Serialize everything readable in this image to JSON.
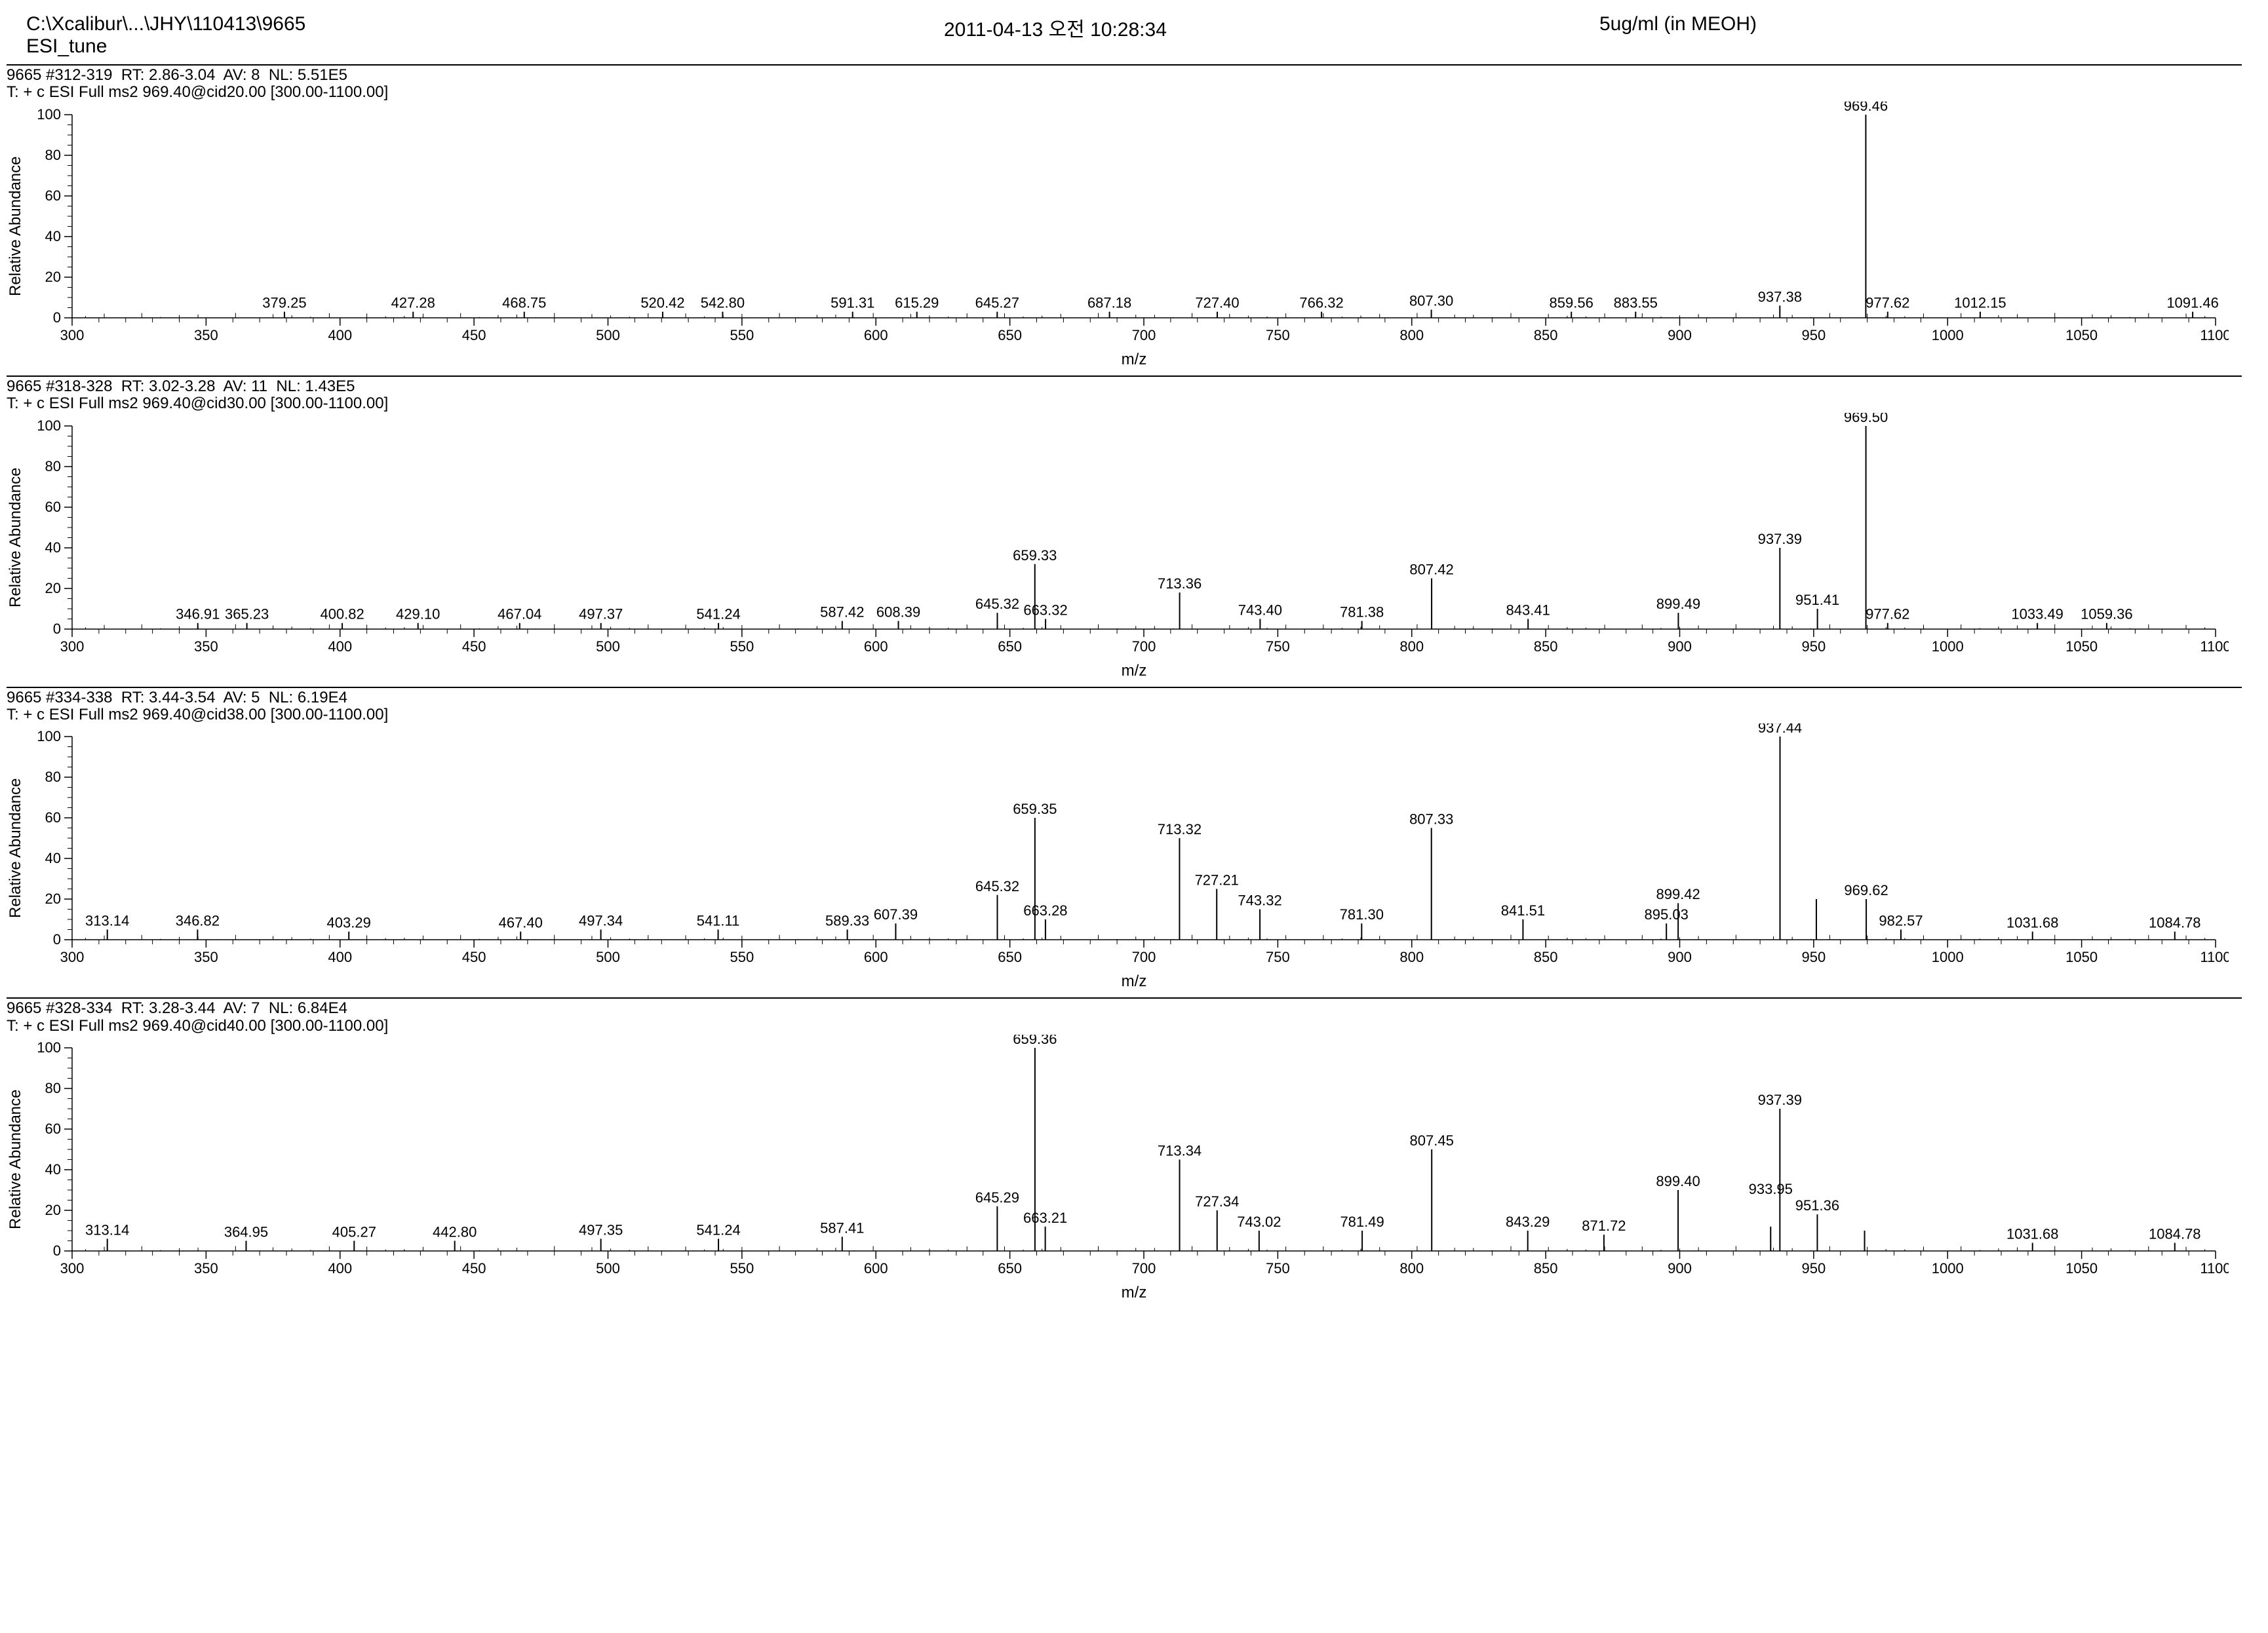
{
  "header": {
    "path": "C:\\Xcalibur\\...\\JHY\\110413\\9665",
    "tune": "ESI_tune",
    "timestamp": "2011-04-13 오전 10:28:34",
    "sample": "5ug/ml (in MEOH)"
  },
  "chart_style": {
    "xlim": [
      300,
      1100
    ],
    "ylim": [
      0,
      100
    ],
    "xtick_step": 50,
    "ytick_step": 20,
    "axis_color": "#000000",
    "tick_len_major": 12,
    "tick_len_minor": 7,
    "font_size_axis": 22,
    "font_size_peak": 22,
    "font_size_ylabel": 24,
    "ylabel": "Relative Abundance",
    "xlabel": "m/z",
    "background": "#ffffff",
    "peak_color": "#000000",
    "line_width": 1.5
  },
  "charts": [
    {
      "meta1": "9665 #312-319  RT: 2.86-3.04  AV: 8  NL: 5.51E5",
      "meta2": "T: + c ESI Full ms2 969.40@cid20.00 [300.00-1100.00]",
      "peaks": [
        {
          "mz": 379.25,
          "h": 3,
          "label": "379.25"
        },
        {
          "mz": 427.28,
          "h": 3,
          "label": "427.28"
        },
        {
          "mz": 468.75,
          "h": 3,
          "label": "468.75"
        },
        {
          "mz": 520.42,
          "h": 3,
          "label": "520.42"
        },
        {
          "mz": 542.8,
          "h": 3,
          "label": "542.80"
        },
        {
          "mz": 591.31,
          "h": 3,
          "label": "591.31"
        },
        {
          "mz": 615.29,
          "h": 3,
          "label": "615.29"
        },
        {
          "mz": 645.27,
          "h": 3,
          "label": "645.27"
        },
        {
          "mz": 687.18,
          "h": 3,
          "label": "687.18"
        },
        {
          "mz": 727.4,
          "h": 3,
          "label": "727.40"
        },
        {
          "mz": 766.32,
          "h": 3,
          "label": "766.32"
        },
        {
          "mz": 807.3,
          "h": 4,
          "label": "807.30"
        },
        {
          "mz": 859.56,
          "h": 3,
          "label": "859.56"
        },
        {
          "mz": 883.55,
          "h": 3,
          "label": "883.55"
        },
        {
          "mz": 937.38,
          "h": 6,
          "label": "937.38"
        },
        {
          "mz": 969.46,
          "h": 100,
          "label": "969.46"
        },
        {
          "mz": 977.62,
          "h": 3,
          "label": "977.62"
        },
        {
          "mz": 1012.15,
          "h": 3,
          "label": "1012.15"
        },
        {
          "mz": 1091.46,
          "h": 3,
          "label": "1091.46"
        }
      ]
    },
    {
      "meta1": "9665 #318-328  RT: 3.02-3.28  AV: 11  NL: 1.43E5",
      "meta2": "T: + c ESI Full ms2 969.40@cid30.00 [300.00-1100.00]",
      "peaks": [
        {
          "mz": 346.91,
          "h": 3,
          "label": "346.91"
        },
        {
          "mz": 365.23,
          "h": 3,
          "label": "365.23"
        },
        {
          "mz": 400.82,
          "h": 3,
          "label": "400.82"
        },
        {
          "mz": 429.1,
          "h": 3,
          "label": "429.10"
        },
        {
          "mz": 467.04,
          "h": 3,
          "label": "467.04"
        },
        {
          "mz": 497.37,
          "h": 3,
          "label": "497.37"
        },
        {
          "mz": 541.24,
          "h": 3,
          "label": "541.24"
        },
        {
          "mz": 587.42,
          "h": 4,
          "label": "587.42"
        },
        {
          "mz": 608.39,
          "h": 4,
          "label": "608.39"
        },
        {
          "mz": 645.32,
          "h": 8,
          "label": "645.32"
        },
        {
          "mz": 659.33,
          "h": 32,
          "label": "659.33"
        },
        {
          "mz": 663.32,
          "h": 5,
          "label": "663.32"
        },
        {
          "mz": 713.36,
          "h": 18,
          "label": "713.36"
        },
        {
          "mz": 743.4,
          "h": 5,
          "label": "743.40"
        },
        {
          "mz": 781.38,
          "h": 4,
          "label": "781.38"
        },
        {
          "mz": 807.42,
          "h": 25,
          "label": "807.42"
        },
        {
          "mz": 843.41,
          "h": 5,
          "label": "843.41"
        },
        {
          "mz": 899.49,
          "h": 8,
          "label": "899.49"
        },
        {
          "mz": 937.39,
          "h": 40,
          "label": "937.39"
        },
        {
          "mz": 951.41,
          "h": 10,
          "label": "951.41"
        },
        {
          "mz": 969.5,
          "h": 100,
          "label": "969.50"
        },
        {
          "mz": 977.62,
          "h": 3,
          "label": "977.62"
        },
        {
          "mz": 1033.49,
          "h": 3,
          "label": "1033.49"
        },
        {
          "mz": 1059.36,
          "h": 3,
          "label": "1059.36"
        }
      ]
    },
    {
      "meta1": "9665 #334-338  RT: 3.44-3.54  AV: 5  NL: 6.19E4",
      "meta2": "T: + c ESI Full ms2 969.40@cid38.00 [300.00-1100.00]",
      "peaks": [
        {
          "mz": 313.14,
          "h": 5,
          "label": "313.14"
        },
        {
          "mz": 346.82,
          "h": 5,
          "label": "346.82"
        },
        {
          "mz": 403.29,
          "h": 4,
          "label": "403.29"
        },
        {
          "mz": 467.4,
          "h": 4,
          "label": "467.40"
        },
        {
          "mz": 497.34,
          "h": 5,
          "label": "497.34"
        },
        {
          "mz": 541.11,
          "h": 5,
          "label": "541.11"
        },
        {
          "mz": 589.33,
          "h": 5,
          "label": "589.33"
        },
        {
          "mz": 607.39,
          "h": 8,
          "label": "607.39"
        },
        {
          "mz": 645.32,
          "h": 22,
          "label": "645.32"
        },
        {
          "mz": 659.35,
          "h": 60,
          "label": "659.35"
        },
        {
          "mz": 663.28,
          "h": 10,
          "label": "663.28"
        },
        {
          "mz": 713.32,
          "h": 50,
          "label": "713.32"
        },
        {
          "mz": 727.21,
          "h": 25,
          "label": "727.21"
        },
        {
          "mz": 743.32,
          "h": 15,
          "label": "743.32"
        },
        {
          "mz": 781.3,
          "h": 8,
          "label": "781.30"
        },
        {
          "mz": 807.33,
          "h": 55,
          "label": "807.33"
        },
        {
          "mz": 841.51,
          "h": 10,
          "label": "841.51"
        },
        {
          "mz": 895.03,
          "h": 8,
          "label": "895.03"
        },
        {
          "mz": 899.42,
          "h": 18,
          "label": "899.42"
        },
        {
          "mz": 937.44,
          "h": 100,
          "label": "937.44"
        },
        {
          "mz": 951.0,
          "h": 20,
          "label": ""
        },
        {
          "mz": 969.62,
          "h": 20,
          "label": "969.62"
        },
        {
          "mz": 982.57,
          "h": 5,
          "label": "982.57"
        },
        {
          "mz": 1031.68,
          "h": 4,
          "label": "1031.68"
        },
        {
          "mz": 1084.78,
          "h": 4,
          "label": "1084.78"
        }
      ]
    },
    {
      "meta1": "9665 #328-334  RT: 3.28-3.44  AV: 7  NL: 6.84E4",
      "meta2": "T: + c ESI Full ms2 969.40@cid40.00 [300.00-1100.00]",
      "peaks": [
        {
          "mz": 313.14,
          "h": 6,
          "label": "313.14"
        },
        {
          "mz": 364.95,
          "h": 5,
          "label": "364.95"
        },
        {
          "mz": 405.27,
          "h": 5,
          "label": "405.27"
        },
        {
          "mz": 442.8,
          "h": 5,
          "label": "442.80"
        },
        {
          "mz": 497.35,
          "h": 6,
          "label": "497.35"
        },
        {
          "mz": 541.24,
          "h": 6,
          "label": "541.24"
        },
        {
          "mz": 587.41,
          "h": 7,
          "label": "587.41"
        },
        {
          "mz": 645.29,
          "h": 22,
          "label": "645.29"
        },
        {
          "mz": 659.36,
          "h": 100,
          "label": "659.36"
        },
        {
          "mz": 663.21,
          "h": 12,
          "label": "663.21"
        },
        {
          "mz": 713.34,
          "h": 45,
          "label": "713.34"
        },
        {
          "mz": 727.34,
          "h": 20,
          "label": "727.34"
        },
        {
          "mz": 743.02,
          "h": 10,
          "label": "743.02"
        },
        {
          "mz": 781.49,
          "h": 10,
          "label": "781.49"
        },
        {
          "mz": 807.45,
          "h": 50,
          "label": "807.45"
        },
        {
          "mz": 843.29,
          "h": 10,
          "label": "843.29"
        },
        {
          "mz": 871.72,
          "h": 8,
          "label": "871.72"
        },
        {
          "mz": 899.4,
          "h": 30,
          "label": "899.40"
        },
        {
          "mz": 933.95,
          "h": 12,
          "label": "933.95"
        },
        {
          "mz": 937.39,
          "h": 70,
          "label": "937.39"
        },
        {
          "mz": 951.36,
          "h": 18,
          "label": "951.36"
        },
        {
          "mz": 969.0,
          "h": 10,
          "label": ""
        },
        {
          "mz": 1031.68,
          "h": 4,
          "label": "1031.68"
        },
        {
          "mz": 1084.78,
          "h": 4,
          "label": "1084.78"
        }
      ]
    }
  ]
}
